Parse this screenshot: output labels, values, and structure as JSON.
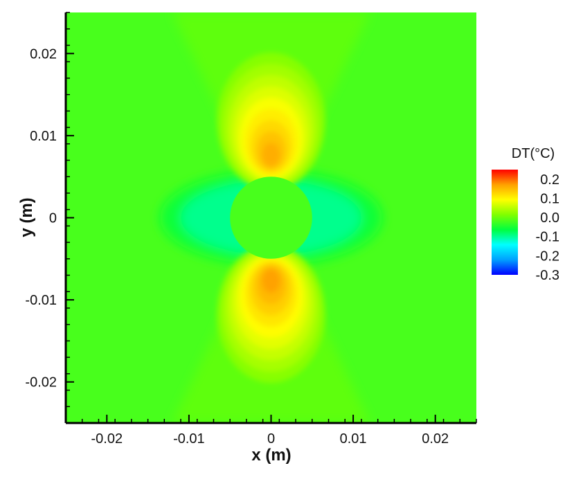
{
  "chart_data": {
    "type": "heatmap",
    "title": "",
    "xlabel": "x (m)",
    "ylabel": "y (m)",
    "xlim": [
      -0.025,
      0.025
    ],
    "ylim": [
      -0.025,
      0.025
    ],
    "x_ticks": [
      -0.02,
      -0.01,
      0,
      0.01,
      0.02
    ],
    "x_tick_labels": [
      "-0.02",
      "-0.01",
      "0",
      "0.01",
      "0.02"
    ],
    "y_ticks": [
      -0.02,
      -0.01,
      0,
      0.01,
      0.02
    ],
    "y_tick_labels": [
      "-0.02",
      "-0.01",
      "0",
      "0.01",
      "0.02"
    ],
    "minor_tick_step": 0.002,
    "grid": false,
    "colorbar": {
      "title": "DT(°C)",
      "range": [
        -0.3,
        0.25
      ],
      "ticks": [
        0.2,
        0.1,
        0.0,
        -0.1,
        -0.2,
        -0.3
      ],
      "tick_labels": [
        "0.2",
        "0.1",
        "0.0",
        "-0.1",
        "-0.2",
        "-0.3"
      ],
      "placement": "right",
      "colormap": [
        "#0000ff",
        "#00a0ff",
        "#00ffff",
        "#00ff40",
        "#80ff00",
        "#ffff00",
        "#ffa000",
        "#ff0000"
      ]
    },
    "field": {
      "background_value": -0.02,
      "features": [
        {
          "kind": "cylinder",
          "x": 0,
          "y": 0,
          "radius": 0.005,
          "value": -0.02
        },
        {
          "kind": "hot_spot",
          "x": 0,
          "y": 0.0072,
          "peak": 0.16
        },
        {
          "kind": "hot_spot",
          "x": 0,
          "y": -0.0072,
          "peak": 0.17
        },
        {
          "kind": "cool_lobes",
          "x": 0,
          "y": 0,
          "min": -0.12
        }
      ]
    }
  }
}
